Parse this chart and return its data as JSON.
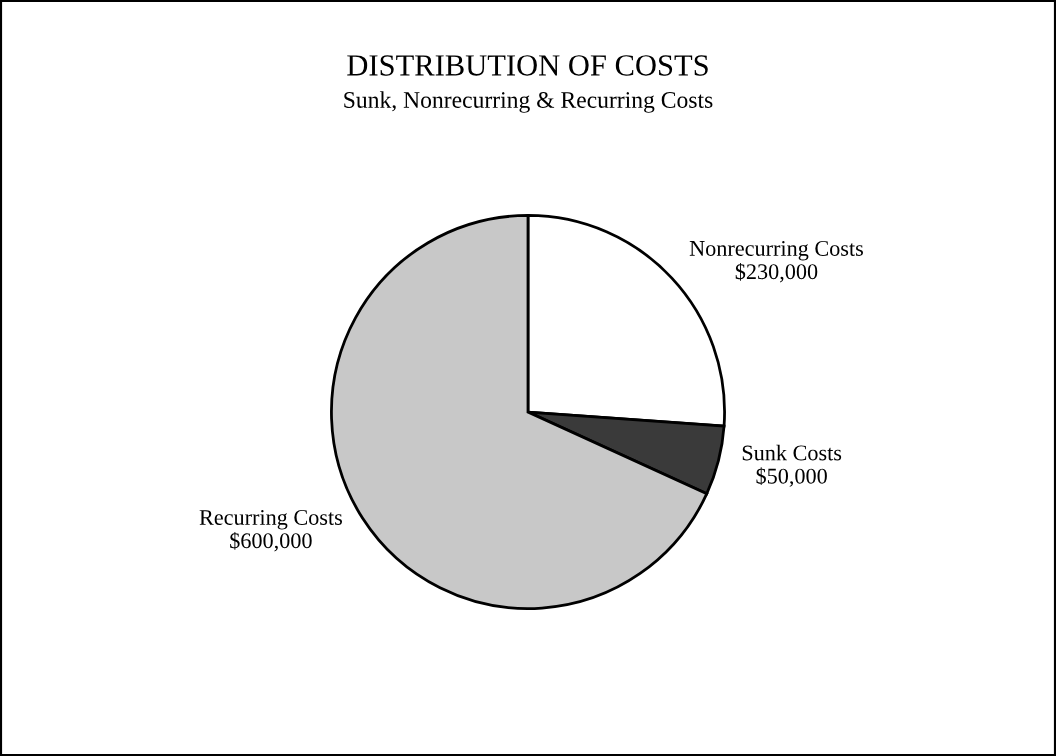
{
  "chart_data": {
    "type": "pie",
    "title": "DISTRIBUTION OF COSTS",
    "subtitle": "Sunk, Nonrecurring & Recurring Costs",
    "categories": [
      "Nonrecurring Costs",
      "Sunk Costs",
      "Recurring Costs"
    ],
    "values": [
      230000,
      50000,
      600000
    ],
    "value_labels": [
      "$230,000",
      "$50,000",
      "$600,000"
    ],
    "colors": [
      "#ffffff",
      "#3a3a3a",
      "#c8c8c8"
    ],
    "legend": false
  }
}
